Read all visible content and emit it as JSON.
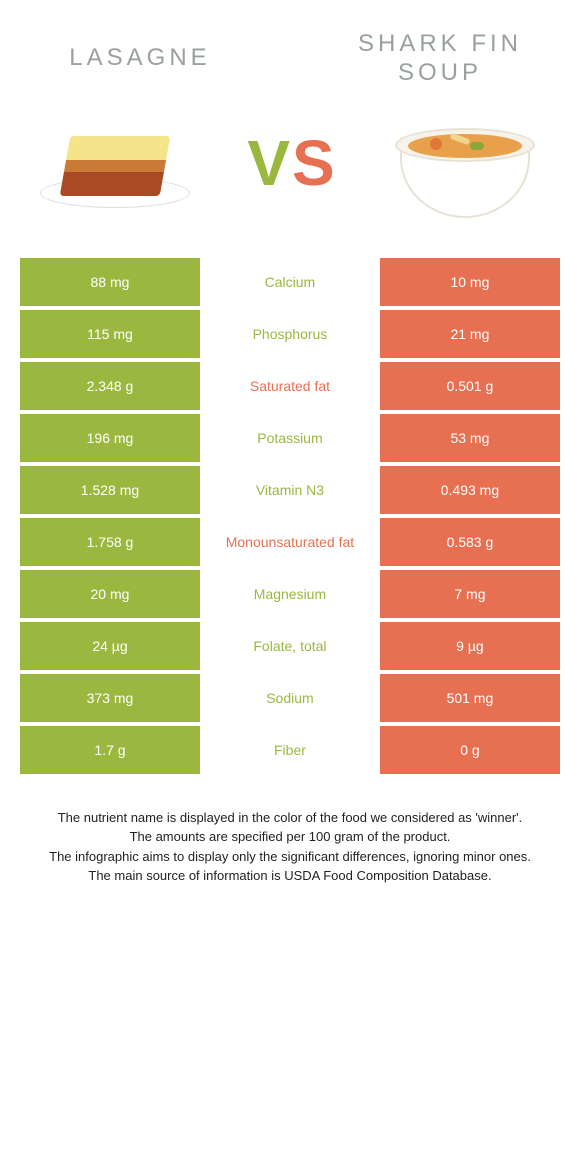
{
  "colors": {
    "green": "#9ab83f",
    "orange": "#e77052",
    "title_gray": "#9aa0a0"
  },
  "header": {
    "left_title": "LASAGNE",
    "right_title": "SHARK FIN SOUP",
    "vs_v": "V",
    "vs_s": "S"
  },
  "table": {
    "rows": [
      {
        "left": "88 mg",
        "label": "Calcium",
        "winner": "green",
        "right": "10 mg"
      },
      {
        "left": "115 mg",
        "label": "Phosphorus",
        "winner": "green",
        "right": "21 mg"
      },
      {
        "left": "2.348 g",
        "label": "Saturated fat",
        "winner": "orange",
        "right": "0.501 g"
      },
      {
        "left": "196 mg",
        "label": "Potassium",
        "winner": "green",
        "right": "53 mg"
      },
      {
        "left": "1.528 mg",
        "label": "Vitamin N3",
        "winner": "green",
        "right": "0.493 mg"
      },
      {
        "left": "1.758 g",
        "label": "Monounsaturated fat",
        "winner": "orange",
        "right": "0.583 g"
      },
      {
        "left": "20 mg",
        "label": "Magnesium",
        "winner": "green",
        "right": "7 mg"
      },
      {
        "left": "24 µg",
        "label": "Folate, total",
        "winner": "green",
        "right": "9 µg"
      },
      {
        "left": "373 mg",
        "label": "Sodium",
        "winner": "green",
        "right": "501 mg"
      },
      {
        "left": "1.7 g",
        "label": "Fiber",
        "winner": "green",
        "right": "0 g"
      }
    ]
  },
  "footnotes": {
    "line1": "The nutrient name is displayed in the color of the food we considered as 'winner'.",
    "line2": "The amounts are specified per 100 gram of the product.",
    "line3": "The infographic aims to display only the significant differences, ignoring minor ones.",
    "line4": "The main source of information is USDA Food Composition Database."
  }
}
